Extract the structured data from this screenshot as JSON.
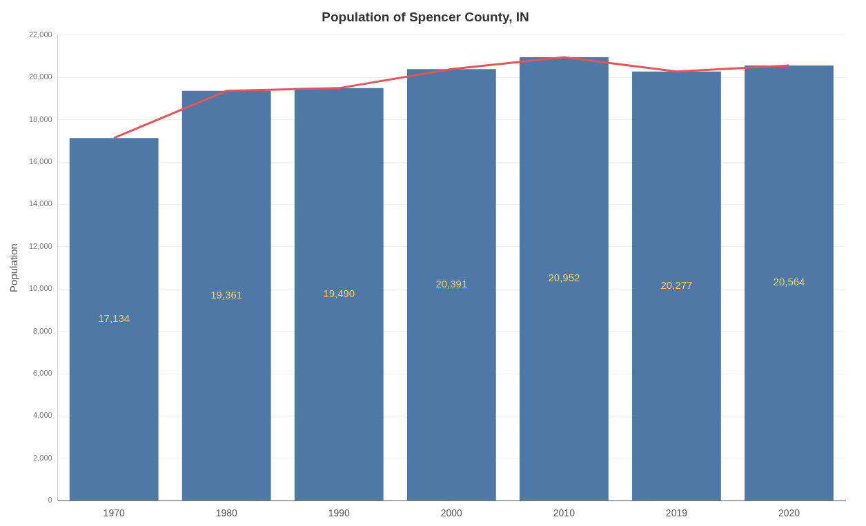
{
  "chart_data": {
    "type": "bar",
    "title": "Population of Spencer County, IN",
    "y_label": "Population",
    "categories": [
      "1970",
      "1980",
      "1990",
      "2000",
      "2010",
      "2019",
      "2020"
    ],
    "series": [
      {
        "type": "bar",
        "color": "#4e79a7",
        "values": [
          17134,
          19361,
          19490,
          20391,
          20952,
          20277,
          20564
        ],
        "value_labels": [
          "17,134",
          "19,361",
          "19,490",
          "20,391",
          "20,952",
          "20,277",
          "20,564"
        ]
      },
      {
        "type": "line",
        "color": "#e15759",
        "values": [
          17134,
          19361,
          19490,
          20391,
          20952,
          20277,
          20564
        ]
      }
    ],
    "ylim": [
      0,
      22000
    ],
    "yticks": [
      0,
      {
        "value": 2000,
        "label": "2,000"
      },
      {
        "value": 4000,
        "label": "4,000"
      },
      {
        "value": 6000,
        "label": "6,000"
      },
      {
        "value": 8000,
        "label": "8,000"
      },
      {
        "value": 10000,
        "label": "10,000"
      },
      {
        "value": 12000,
        "label": "12,000"
      },
      {
        "value": 14000,
        "label": "14,000"
      },
      {
        "value": 16000,
        "label": "16,000"
      },
      {
        "value": 18000,
        "label": "18,000"
      },
      {
        "value": 20000,
        "label": "20,000"
      },
      {
        "value": 22000,
        "label": "22,000"
      }
    ],
    "grid": true,
    "data_labels": true
  }
}
